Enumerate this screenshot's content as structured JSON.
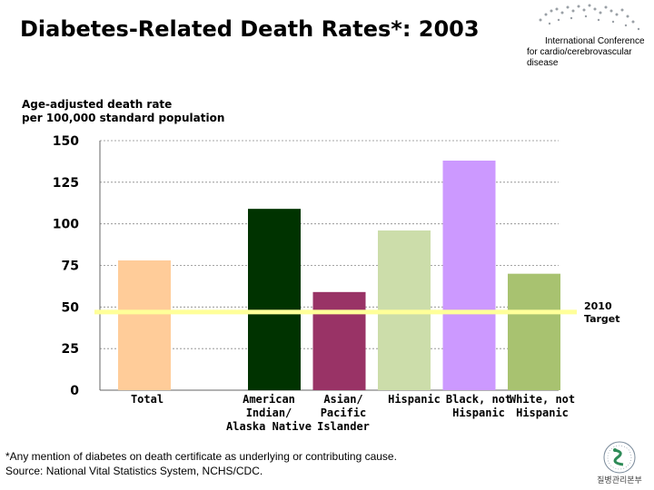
{
  "header": {
    "title": "Diabetes-Related Death Rates*: 2003",
    "conference_line1": "International Conference",
    "conference_line2": "for cardio/cerebrovascular disease"
  },
  "footnote": {
    "line1": "*Any mention of diabetes on death certificate as underlying or contributing cause.",
    "line2": "Source: National Vital Statistics System, NCHS/CDC."
  },
  "logo": {
    "text": "질병관리본부"
  },
  "chart_data": {
    "type": "bar",
    "title": "Diabetes-Related Death Rates*: 2003",
    "ylabel_lines": [
      "Age-adjusted death rate",
      "per 100,000 standard population"
    ],
    "xlabel": "",
    "ylim": [
      0,
      150
    ],
    "yticks": [
      0,
      25,
      50,
      75,
      100,
      125,
      150
    ],
    "grid": true,
    "categories": [
      [
        "Total"
      ],
      [
        "American",
        "Indian/",
        "Alaska Native"
      ],
      [
        "Asian/",
        "Pacific",
        "Islander"
      ],
      [
        "Hispanic"
      ],
      [
        "Black, not",
        "Hispanic"
      ],
      [
        "White, not",
        "Hispanic"
      ]
    ],
    "values": [
      78,
      109,
      59,
      96,
      138,
      70
    ],
    "colors": [
      "#FFCC99",
      "#003300",
      "#993366",
      "#CCDDAA",
      "#CC99FF",
      "#A8C270"
    ],
    "reference_line": {
      "value": 47,
      "label_lines": [
        "2010",
        "Target"
      ],
      "color": "#FFFF99"
    }
  }
}
